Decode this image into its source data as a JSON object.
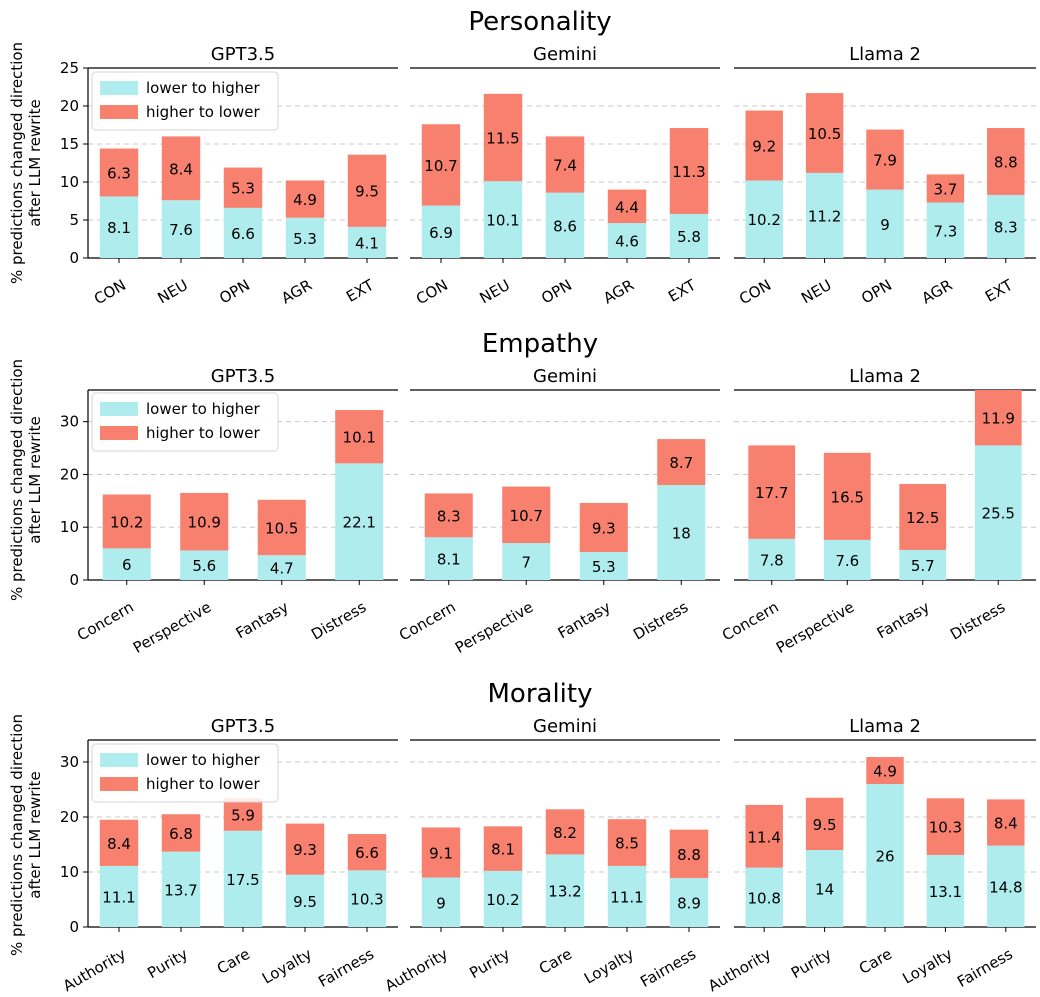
{
  "colors": {
    "lower_to_higher": "#aeecee",
    "higher_to_lower": "#f7806f",
    "grid": "#c8c8c8",
    "axis": "#000000"
  },
  "legend": {
    "placement": "top-left",
    "entries": [
      "lower to higher",
      "higher to lower"
    ]
  },
  "chart_data": [
    {
      "type": "bar",
      "stacked": true,
      "row_title": "Personality",
      "ylabel": [
        "% predictions changed direction",
        "after LLM rewrite"
      ],
      "ylim": [
        0,
        25
      ],
      "yticks": [
        0,
        5,
        10,
        15,
        20,
        25
      ],
      "grid": "y-dashed",
      "series_names": [
        "lower to higher",
        "higher to lower"
      ],
      "panels": [
        {
          "title": "GPT3.5",
          "categories": [
            "CON",
            "NEU",
            "OPN",
            "AGR",
            "EXT"
          ],
          "lower_to_higher": [
            8.1,
            7.6,
            6.6,
            5.3,
            4.1
          ],
          "higher_to_lower": [
            6.3,
            8.4,
            5.3,
            4.9,
            9.5
          ]
        },
        {
          "title": "Gemini",
          "categories": [
            "CON",
            "NEU",
            "OPN",
            "AGR",
            "EXT"
          ],
          "lower_to_higher": [
            6.9,
            10.1,
            8.6,
            4.6,
            5.8
          ],
          "higher_to_lower": [
            10.7,
            11.5,
            7.4,
            4.4,
            11.3
          ]
        },
        {
          "title": "Llama 2",
          "categories": [
            "CON",
            "NEU",
            "OPN",
            "AGR",
            "EXT"
          ],
          "lower_to_higher": [
            10.2,
            11.2,
            9,
            7.3,
            8.3
          ],
          "higher_to_lower": [
            9.2,
            10.5,
            7.9,
            3.7,
            8.8
          ]
        }
      ]
    },
    {
      "type": "bar",
      "stacked": true,
      "row_title": "Empathy",
      "ylabel": [
        "% predictions changed direction",
        "after LLM rewrite"
      ],
      "ylim": [
        0,
        36
      ],
      "yticks": [
        0,
        10,
        20,
        30
      ],
      "grid": "y-dashed",
      "series_names": [
        "lower to higher",
        "higher to lower"
      ],
      "panels": [
        {
          "title": "GPT3.5",
          "categories": [
            "Concern",
            "Perspective",
            "Fantasy",
            "Distress"
          ],
          "lower_to_higher": [
            6,
            5.6,
            4.7,
            22.1
          ],
          "higher_to_lower": [
            10.2,
            10.9,
            10.5,
            10.1
          ]
        },
        {
          "title": "Gemini",
          "categories": [
            "Concern",
            "Perspective",
            "Fantasy",
            "Distress"
          ],
          "lower_to_higher": [
            8.1,
            7,
            5.3,
            18
          ],
          "higher_to_lower": [
            8.3,
            10.7,
            9.3,
            8.7
          ]
        },
        {
          "title": "Llama 2",
          "categories": [
            "Concern",
            "Perspective",
            "Fantasy",
            "Distress"
          ],
          "lower_to_higher": [
            7.8,
            7.6,
            5.7,
            25.5
          ],
          "higher_to_lower": [
            17.7,
            16.5,
            12.5,
            11.9
          ]
        }
      ]
    },
    {
      "type": "bar",
      "stacked": true,
      "row_title": "Morality",
      "ylabel": [
        "% predictions changed direction",
        "after LLM rewrite"
      ],
      "ylim": [
        0,
        34
      ],
      "yticks": [
        0,
        10,
        20,
        30
      ],
      "grid": "y-dashed",
      "series_names": [
        "lower to higher",
        "higher to lower"
      ],
      "panels": [
        {
          "title": "GPT3.5",
          "categories": [
            "Authority",
            "Purity",
            "Care",
            "Loyalty",
            "Fairness"
          ],
          "lower_to_higher": [
            11.1,
            13.7,
            17.5,
            9.5,
            10.3
          ],
          "higher_to_lower": [
            8.4,
            6.8,
            5.9,
            9.3,
            6.6
          ]
        },
        {
          "title": "Gemini",
          "categories": [
            "Authority",
            "Purity",
            "Care",
            "Loyalty",
            "Fairness"
          ],
          "lower_to_higher": [
            9,
            10.2,
            13.2,
            11.1,
            8.9
          ],
          "higher_to_lower": [
            9.1,
            8.1,
            8.2,
            8.5,
            8.8
          ]
        },
        {
          "title": "Llama 2",
          "categories": [
            "Authority",
            "Purity",
            "Care",
            "Loyalty",
            "Fairness"
          ],
          "lower_to_higher": [
            10.8,
            14,
            26,
            13.1,
            14.8
          ],
          "higher_to_lower": [
            11.4,
            9.5,
            4.9,
            10.3,
            8.4
          ]
        }
      ]
    }
  ]
}
